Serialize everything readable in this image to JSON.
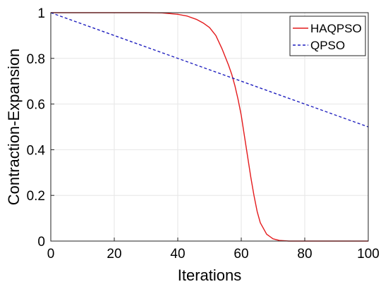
{
  "chart_data": {
    "type": "line",
    "title": "",
    "xlabel": "Iterations",
    "ylabel": "Contraction-Expansion",
    "xlim": [
      0,
      100
    ],
    "ylim": [
      0,
      1
    ],
    "xticks": [
      0,
      20,
      40,
      60,
      80,
      100
    ],
    "yticks": [
      0,
      0.2,
      0.4,
      0.6,
      0.8,
      1
    ],
    "grid": true,
    "legend_position": "top-right",
    "series": [
      {
        "name": "HAQPSO",
        "color": "#e41a1c",
        "style": "solid",
        "x": [
          0,
          10,
          20,
          30,
          35,
          40,
          43,
          46,
          48,
          50,
          52,
          54,
          56,
          57,
          58,
          59,
          60,
          61,
          62,
          63,
          64,
          65,
          66,
          68,
          70,
          72,
          75,
          80,
          90,
          100
        ],
        "y": [
          1.0,
          1.0,
          1.0,
          1.0,
          0.999,
          0.993,
          0.985,
          0.97,
          0.955,
          0.935,
          0.9,
          0.84,
          0.77,
          0.73,
          0.68,
          0.62,
          0.55,
          0.46,
          0.37,
          0.28,
          0.2,
          0.13,
          0.08,
          0.03,
          0.01,
          0.003,
          0.0,
          0.0,
          0.0,
          0.0
        ]
      },
      {
        "name": "QPSO",
        "color": "#1f1fbf",
        "style": "dashed",
        "x": [
          0,
          100
        ],
        "y": [
          1.0,
          0.5
        ]
      }
    ]
  }
}
